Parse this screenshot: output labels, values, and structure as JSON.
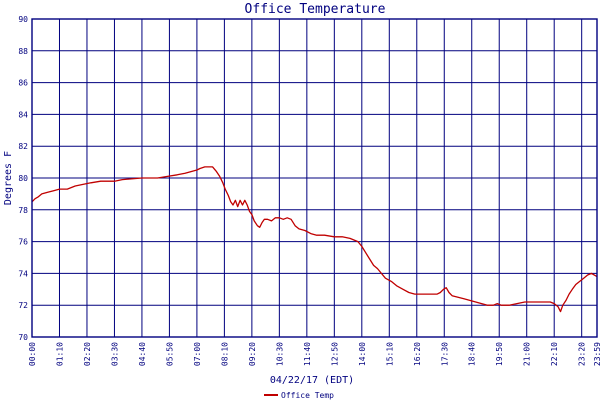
{
  "chart_data": {
    "type": "line",
    "title": "Office Temperature",
    "xlabel": "04/22/17 (EDT)",
    "ylabel": "Degrees F",
    "ylim": [
      70,
      90
    ],
    "yticks": [
      "70",
      "72",
      "74",
      "76",
      "78",
      "80",
      "82",
      "84",
      "86",
      "88",
      "90"
    ],
    "xlim_minutes": [
      0,
      1439
    ],
    "xticks": [
      {
        "label": "00:00",
        "minute": 0
      },
      {
        "label": "01:10",
        "minute": 70
      },
      {
        "label": "02:20",
        "minute": 140
      },
      {
        "label": "03:30",
        "minute": 210
      },
      {
        "label": "04:40",
        "minute": 280
      },
      {
        "label": "05:50",
        "minute": 350
      },
      {
        "label": "07:00",
        "minute": 420
      },
      {
        "label": "08:10",
        "minute": 490
      },
      {
        "label": "09:20",
        "minute": 560
      },
      {
        "label": "10:30",
        "minute": 630
      },
      {
        "label": "11:40",
        "minute": 700
      },
      {
        "label": "12:50",
        "minute": 770
      },
      {
        "label": "14:00",
        "minute": 840
      },
      {
        "label": "15:10",
        "minute": 910
      },
      {
        "label": "16:20",
        "minute": 980
      },
      {
        "label": "17:30",
        "minute": 1050
      },
      {
        "label": "18:40",
        "minute": 1120
      },
      {
        "label": "19:50",
        "minute": 1190
      },
      {
        "label": "21:00",
        "minute": 1260
      },
      {
        "label": "22:10",
        "minute": 1330
      },
      {
        "label": "23:20",
        "minute": 1400
      },
      {
        "label": "23:59",
        "minute": 1439
      }
    ],
    "grid": true,
    "legend_position": "bottom",
    "colors": {
      "series": "#c00000",
      "grid": "#00007f",
      "text": "#00007f",
      "background": "#ffffff"
    },
    "series": [
      {
        "name": "Office Temp",
        "points": [
          [
            0,
            78.5
          ],
          [
            8,
            78.7
          ],
          [
            15,
            78.8
          ],
          [
            25,
            79.0
          ],
          [
            40,
            79.1
          ],
          [
            55,
            79.2
          ],
          [
            70,
            79.3
          ],
          [
            90,
            79.3
          ],
          [
            110,
            79.5
          ],
          [
            130,
            79.6
          ],
          [
            150,
            79.7
          ],
          [
            175,
            79.8
          ],
          [
            210,
            79.8
          ],
          [
            230,
            79.9
          ],
          [
            280,
            80.0
          ],
          [
            320,
            80.0
          ],
          [
            345,
            80.1
          ],
          [
            370,
            80.2
          ],
          [
            390,
            80.3
          ],
          [
            405,
            80.4
          ],
          [
            420,
            80.5
          ],
          [
            428,
            80.6
          ],
          [
            440,
            80.7
          ],
          [
            460,
            80.7
          ],
          [
            470,
            80.4
          ],
          [
            478,
            80.1
          ],
          [
            486,
            79.7
          ],
          [
            492,
            79.3
          ],
          [
            500,
            78.9
          ],
          [
            506,
            78.5
          ],
          [
            512,
            78.3
          ],
          [
            518,
            78.6
          ],
          [
            524,
            78.2
          ],
          [
            530,
            78.6
          ],
          [
            536,
            78.3
          ],
          [
            542,
            78.6
          ],
          [
            548,
            78.3
          ],
          [
            554,
            77.9
          ],
          [
            560,
            77.7
          ],
          [
            566,
            77.3
          ],
          [
            574,
            77.0
          ],
          [
            580,
            76.9
          ],
          [
            586,
            77.2
          ],
          [
            592,
            77.4
          ],
          [
            600,
            77.4
          ],
          [
            610,
            77.3
          ],
          [
            620,
            77.5
          ],
          [
            630,
            77.5
          ],
          [
            640,
            77.4
          ],
          [
            650,
            77.5
          ],
          [
            660,
            77.4
          ],
          [
            670,
            77.0
          ],
          [
            680,
            76.8
          ],
          [
            695,
            76.7
          ],
          [
            710,
            76.5
          ],
          [
            725,
            76.4
          ],
          [
            745,
            76.4
          ],
          [
            770,
            76.3
          ],
          [
            790,
            76.3
          ],
          [
            810,
            76.2
          ],
          [
            830,
            76.0
          ],
          [
            840,
            75.7
          ],
          [
            850,
            75.3
          ],
          [
            860,
            74.9
          ],
          [
            870,
            74.5
          ],
          [
            880,
            74.3
          ],
          [
            890,
            74.0
          ],
          [
            900,
            73.7
          ],
          [
            915,
            73.5
          ],
          [
            930,
            73.2
          ],
          [
            945,
            73.0
          ],
          [
            960,
            72.8
          ],
          [
            975,
            72.7
          ],
          [
            995,
            72.7
          ],
          [
            1015,
            72.7
          ],
          [
            1032,
            72.7
          ],
          [
            1040,
            72.8
          ],
          [
            1048,
            73.0
          ],
          [
            1055,
            73.1
          ],
          [
            1062,
            72.8
          ],
          [
            1070,
            72.6
          ],
          [
            1085,
            72.5
          ],
          [
            1100,
            72.4
          ],
          [
            1115,
            72.3
          ],
          [
            1130,
            72.2
          ],
          [
            1145,
            72.1
          ],
          [
            1160,
            72.0
          ],
          [
            1175,
            72.0
          ],
          [
            1185,
            72.1
          ],
          [
            1195,
            72.0
          ],
          [
            1215,
            72.0
          ],
          [
            1235,
            72.1
          ],
          [
            1255,
            72.2
          ],
          [
            1285,
            72.2
          ],
          [
            1320,
            72.2
          ],
          [
            1330,
            72.1
          ],
          [
            1340,
            71.9
          ],
          [
            1346,
            71.6
          ],
          [
            1352,
            72.0
          ],
          [
            1360,
            72.3
          ],
          [
            1368,
            72.7
          ],
          [
            1376,
            73.0
          ],
          [
            1385,
            73.3
          ],
          [
            1395,
            73.5
          ],
          [
            1405,
            73.7
          ],
          [
            1415,
            73.9
          ],
          [
            1425,
            74.0
          ],
          [
            1439,
            73.8
          ]
        ]
      }
    ]
  }
}
